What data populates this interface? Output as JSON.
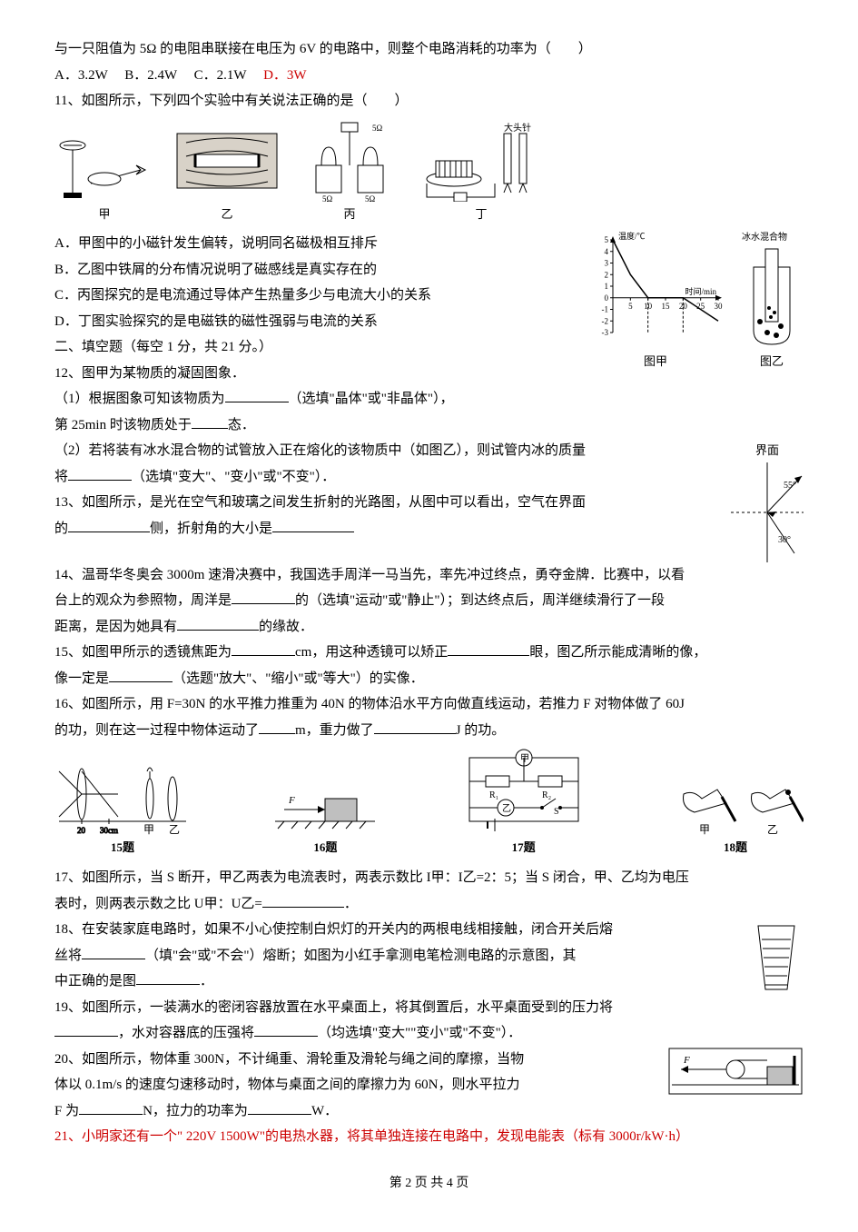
{
  "q10_tail": "与一只阻值为 5Ω 的电阻串联接在电压为 6V 的电路中，则整个电路消耗的功率为（　　）",
  "q10_opts": {
    "A": "A．3.2W",
    "B": "B．2.4W",
    "C": "C．2.1W",
    "D": "D．3W"
  },
  "q11": "11、如图所示，下列四个实验中有关说法正确的是（　　）",
  "q11_opts": {
    "A": "A．甲图中的小磁针发生偏转，说明同名磁极相互排斥",
    "B": "B．乙图中铁屑的分布情况说明了磁感线是真实存在的",
    "C": "C．丙图探究的是电流通过导体产生热量多少与电流大小的关系",
    "D": "D．丁图实验探究的是电磁铁的磁性强弱与电流的关系"
  },
  "section2": "二、填空题（每空 1 分，共 21 分。）",
  "q12a": "12、图甲为某物质的凝固图象．",
  "q12b_pre": "（1）根据图象可知该物质为",
  "q12b_post": "（选填\"晶体\"或\"非晶体\"），",
  "q12c_pre": "第 25min 时该物质处于",
  "q12c_post": "态．",
  "q12d": "（2）若将装有冰水混合物的试管放入正在熔化的该物质中（如图乙），则试管内冰的质量",
  "q12e_pre": "将",
  "q12e_post": "（选填\"变大\"、\"变小\"或\"不变\"）．",
  "q13a": "13、如图所示，是光在空气和玻璃之间发生折射的光路图，从图中可以看出，空气在界面",
  "q13b_pre": "的",
  "q13b_mid": "侧，折射角的大小是",
  "q14a": "14、温哥华冬奥会 3000m 速滑决赛中，我国选手周洋一马当先，率先冲过终点，勇夺金牌．比赛中，以看",
  "q14b_pre": "台上的观众为参照物，周洋是",
  "q14b_mid": "的（选填\"运动\"或\"静止\"）；到达终点后，周洋继续滑行了一段",
  "q14c_pre": "距离，是因为她具有",
  "q14c_post": "的缘故．",
  "q15a_pre": "15、如图甲所示的透镜焦距为",
  "q15a_mid": "cm，用这种透镜可以矫正",
  "q15a_post": "眼，图乙所示能成清晰的像，",
  "q15b_pre": "像一定是",
  "q15b_post": "（选题\"放大\"、\"缩小\"或\"等大\"）的实像．",
  "q16a": "16、如图所示，用 F=30N 的水平推力推重为 40N 的物体沿水平方向做直线运动，若推力 F 对物体做了 60J",
  "q16b_pre": "的功，则在这一过程中物体运动了",
  "q16b_mid": "m，重力做了",
  "q16b_post": "J 的功。",
  "q17a": "17、如图所示，当 S 断开，甲乙两表为电流表时，两表示数比 I甲：I乙=2：5；当 S 闭合，甲、乙均为电压",
  "q17b_pre": "表时，则两表示数之比 U甲：U乙=",
  "q17b_post": "．",
  "q18a": "18、在安装家庭电路时，如果不小心使控制白炽灯的开关内的两根电线相接触，闭合开关后熔",
  "q18b_pre": "丝将",
  "q18b_mid": "（填\"会\"或\"不会\"）熔断；如图为小红手拿测电笔检测电路的示意图，其",
  "q18c_pre": "中正确的是图",
  "q18c_post": "．",
  "q19a": "19、如图所示，一装满水的密闭容器放置在水平桌面上，将其倒置后，水平桌面受到的压力将",
  "q19b_mid": "，水对容器底的压强将",
  "q19b_post": "（均选填\"变大\"\"变小\"或\"不变\"）．",
  "q20a": "20、如图所示，物体重 300N，不计绳重、滑轮重及滑轮与绳之间的摩擦，当物",
  "q20b": "体以 0.1m/s 的速度匀速移动时，物体与桌面之间的摩擦力为 60N，则水平拉力",
  "q20c_pre": "F 为",
  "q20c_mid": "N，拉力的功率为",
  "q20c_post": "W．",
  "q21": "21、小明家还有一个\" 220V 1500W\"的电热水器，将其单独连接在电路中，发现电能表（标有 3000r/kW·h）",
  "fig_labels": {
    "jia": "甲",
    "yi": "乙",
    "bing": "丙",
    "ding": "丁",
    "tujia": "图甲",
    "tuyi": "图乙",
    "jiemian": "界面"
  },
  "fig15": "15题",
  "fig16": "16题",
  "fig17": "17题",
  "fig18": "18题",
  "chart": {
    "y_title": "温度/℃",
    "x_title": "时间/min",
    "ymin": -3,
    "ymax": 5,
    "ytick": 1,
    "xmax": 30,
    "xtick": 5,
    "points": [
      [
        0,
        5
      ],
      [
        5,
        2
      ],
      [
        10,
        0
      ],
      [
        20,
        0
      ],
      [
        30,
        -2
      ]
    ],
    "axis_color": "#000",
    "line_color": "#000",
    "bg": "#fff",
    "grid_dash": "3,2",
    "fontsize": 9
  },
  "refraction": {
    "angle1": 55,
    "angle2": 30
  },
  "footer": "第 2 页 共 4 页"
}
